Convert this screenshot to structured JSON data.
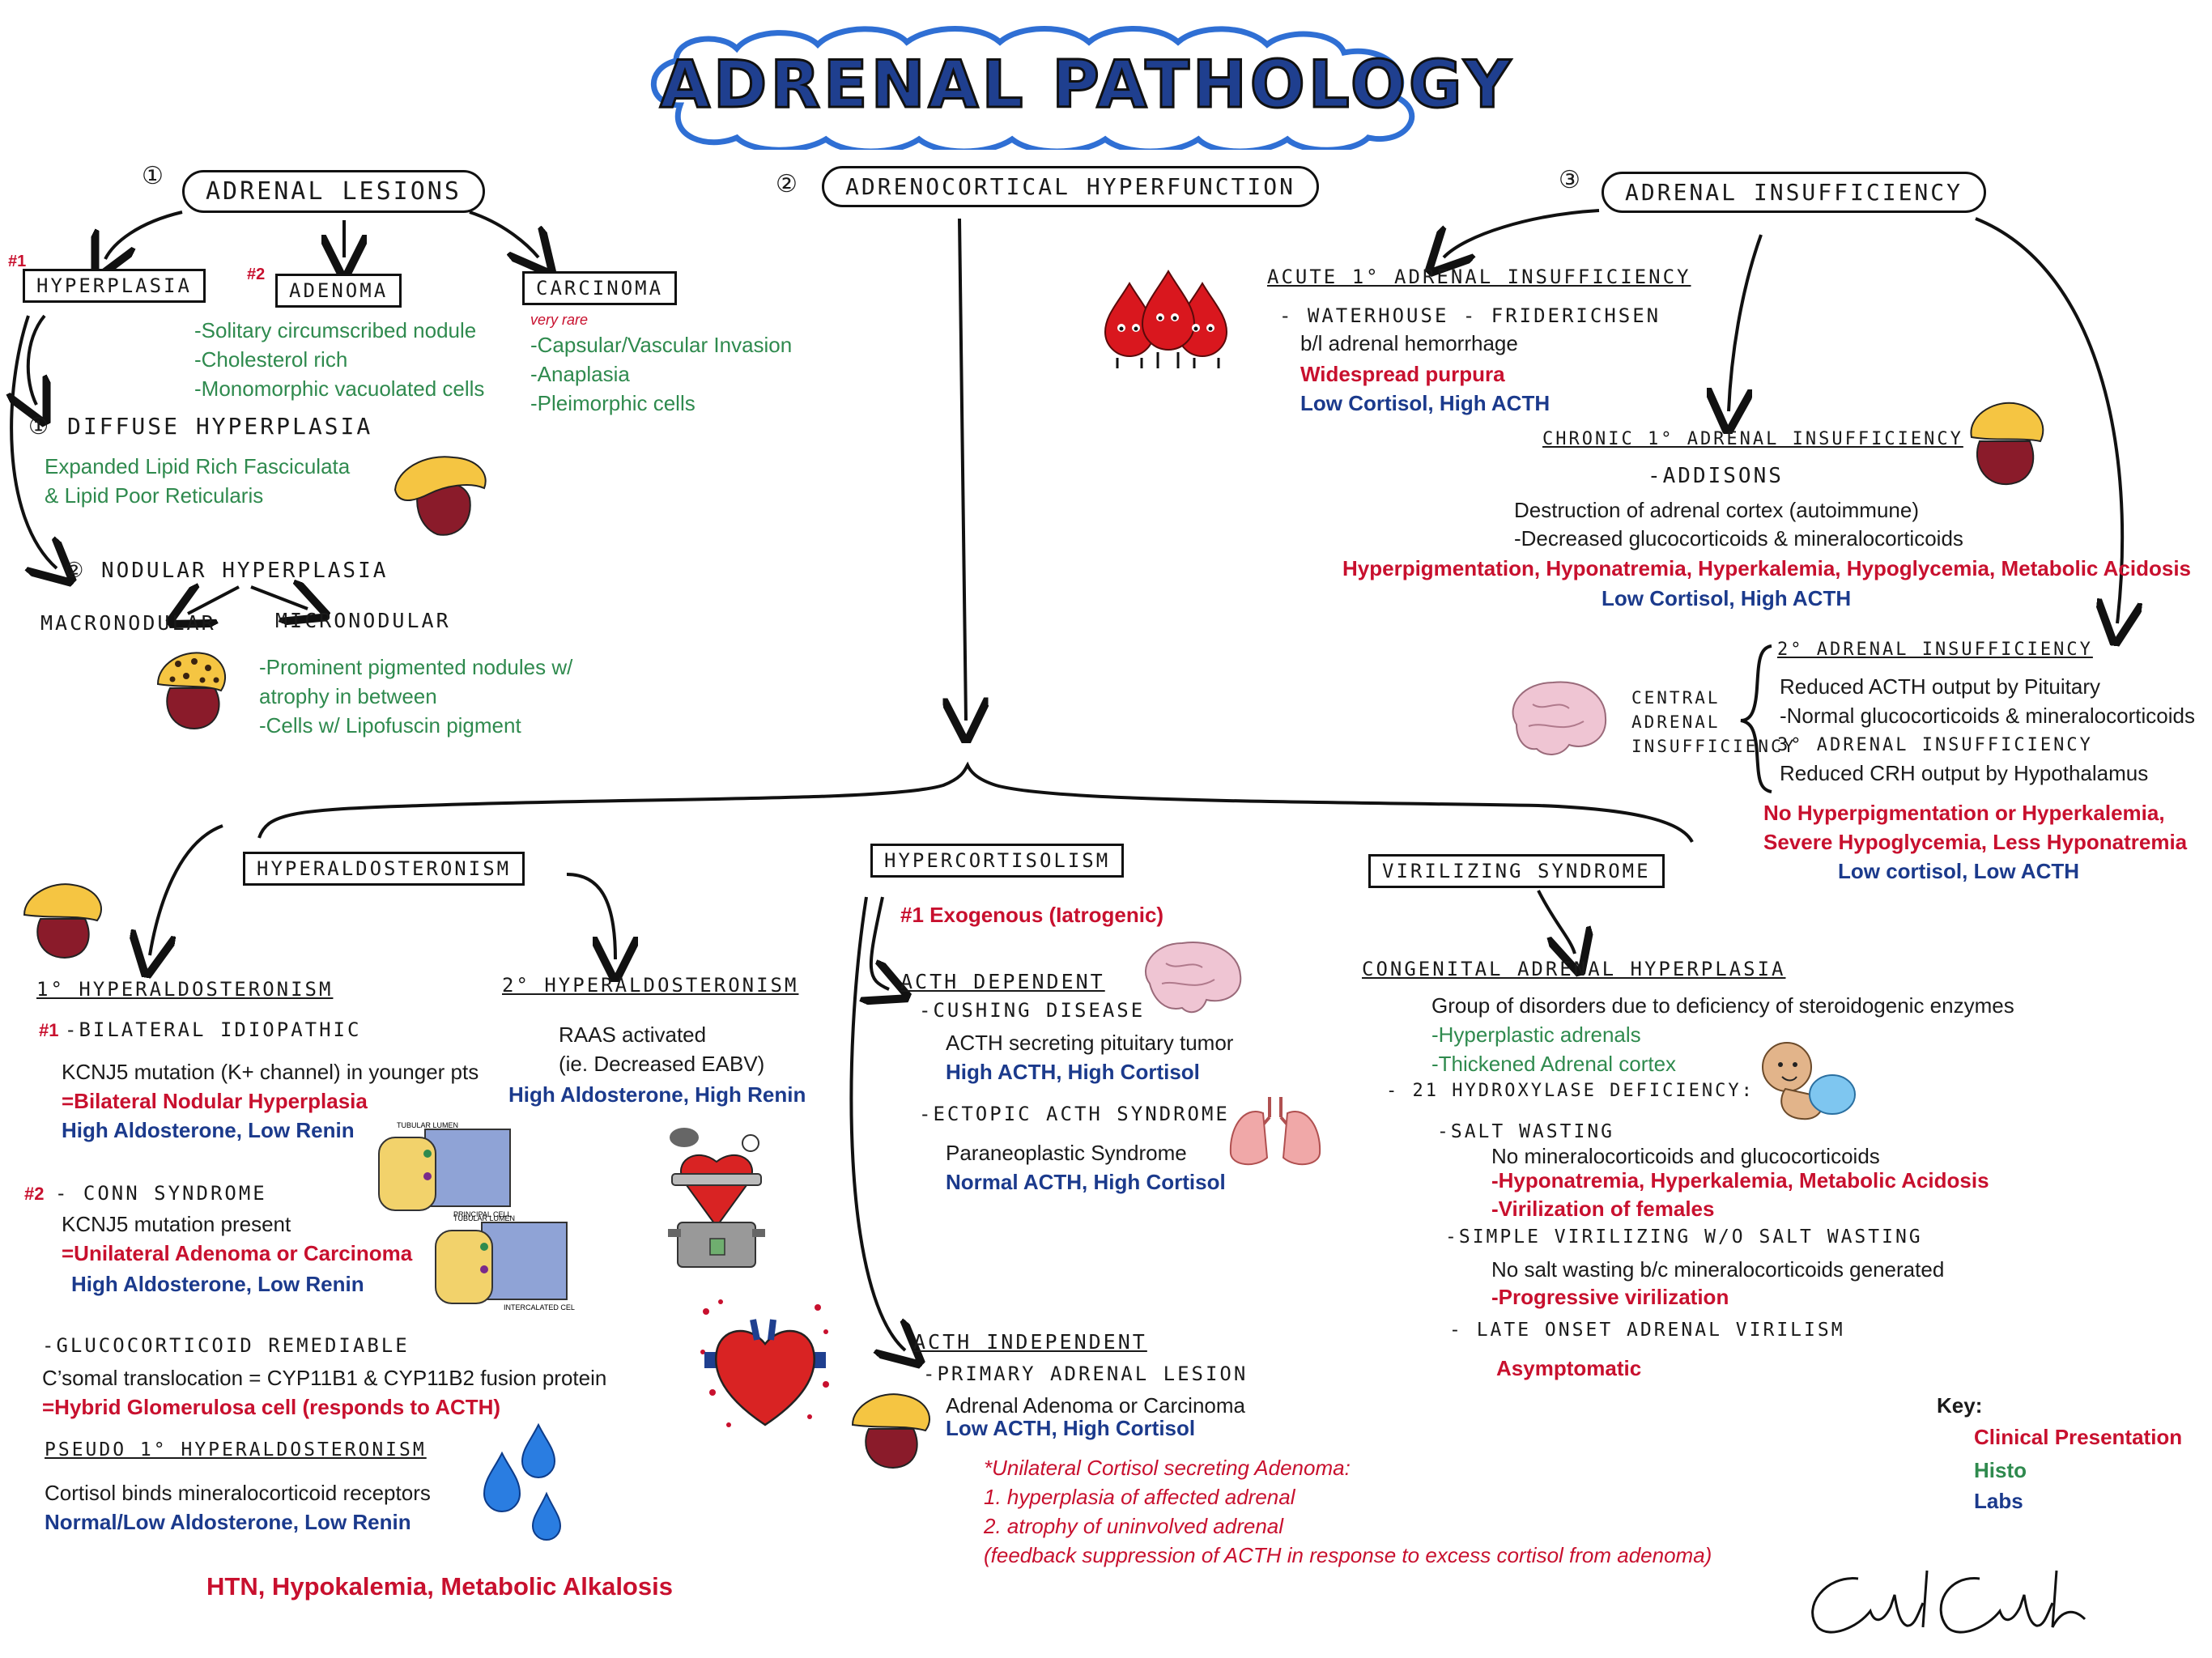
{
  "title": "ADRENAL PATHOLOGY",
  "colors": {
    "red": "#c8102e",
    "green": "#2f8a4e",
    "blue": "#1b3a8c",
    "title_fill": "#1f3f8f",
    "cloud_border": "#2f6fd4"
  },
  "s1": {
    "num": "①",
    "head": "ADRENAL LESIONS",
    "hyperplasia": {
      "tag": "#1",
      "label": "HYPERPLASIA",
      "diffuse": {
        "label": "① DIFFUSE HYPERPLASIA",
        "l1": "Expanded Lipid Rich Fasciculata",
        "l2": "& Lipid Poor Reticularis"
      },
      "nodular": {
        "label": "② NODULAR HYPERPLASIA",
        "macro": "MACRONODULAR",
        "micro": "MICRONODULAR",
        "l1": "-Prominent pigmented nodules w/",
        "l2": "atrophy in between",
        "l3": "-Cells w/ Lipofuscin pigment"
      }
    },
    "adenoma": {
      "tag": "#2",
      "label": "ADENOMA",
      "l1": "-Solitary circumscribed nodule",
      "l2": "-Cholesterol rich",
      "l3": "-Monomorphic vacuolated cells"
    },
    "carcinoma": {
      "label": "CARCINOMA",
      "note": "very rare",
      "l1": "-Capsular/Vascular Invasion",
      "l2": "-Anaplasia",
      "l3": "-Pleimorphic cells"
    }
  },
  "s2": {
    "num": "②",
    "head": "ADRENOCORTICAL HYPERFUNCTION",
    "hyperaldo": {
      "head": "HYPERALDOSTERONISM",
      "primary": {
        "label": "1° HYPERALDOSTERONISM",
        "bil_tag": "#1",
        "bil": "-BILATERAL IDIOPATHIC",
        "bil_l1": "KCNJ5 mutation (K+ channel) in younger pts",
        "bil_l2": "=Bilateral Nodular Hyperplasia",
        "bil_l3": "High Aldosterone, Low Renin",
        "conn_tag": "#2",
        "conn": "- CONN SYNDROME",
        "conn_l1": "KCNJ5 mutation present",
        "conn_l2": "=Unilateral Adenoma or Carcinoma",
        "conn_l3": "High Aldosterone, Low Renin",
        "cell1": "PRINCIPAL CELL",
        "cell2": "INTERCALATED CELL",
        "lumen": "TUBULAR LUMEN"
      },
      "gluco": {
        "label": "-GLUCOCORTICOID REMEDIABLE",
        "l1": "C’somal translocation = CYP11B1 & CYP11B2 fusion protein",
        "l2": "=Hybrid Glomerulosa cell (responds to ACTH)"
      },
      "pseudo": {
        "label": "PSEUDO 1° HYPERALDOSTERONISM",
        "l1": "Cortisol binds mineralocorticoid receptors",
        "l2": "Normal/Low Aldosterone, Low Renin"
      },
      "secondary": {
        "label": "2° HYPERALDOSTERONISM",
        "l1": "RAAS activated",
        "l2": "(ie. Decreased EABV)",
        "l3": "High Aldosterone, High Renin"
      },
      "clinical": "HTN, Hypokalemia, Metabolic Alkalosis"
    },
    "hypercort": {
      "head": "HYPERCORTISOLISM",
      "exo": "#1 Exogenous (Iatrogenic)",
      "dep": "ACTH DEPENDENT",
      "cushing": "-CUSHING DISEASE",
      "c_l1": "ACTH secreting pituitary tumor",
      "c_l2": "High ACTH, High Cortisol",
      "ectopic": "-ECTOPIC ACTH SYNDROME",
      "e_l1": "Paraneoplastic Syndrome",
      "e_l2": "Normal ACTH, High Cortisol",
      "indep": "ACTH INDEPENDENT",
      "pal": "-PRIMARY ADRENAL LESION",
      "p_l1": "Adrenal Adenoma or Carcinoma",
      "p_l2": "Low ACTH, High Cortisol",
      "n1": "*Unilateral Cortisol secreting Adenoma:",
      "n2": "1. hyperplasia of affected adrenal",
      "n3": "2. atrophy of uninvolved adrenal",
      "n4": "(feedback suppression of ACTH in response to excess cortisol from adenoma)"
    },
    "viril": {
      "head": "VIRILIZING SYNDROME",
      "cah": "CONGENITAL ADRENAL HYPERPLASIA",
      "l1": "Group of disorders due to deficiency of steroidogenic enzymes",
      "l2": "-Hyperplastic adrenals",
      "l3": "-Thickened Adrenal cortex",
      "hydrox": "- 21 HYDROXYLASE DEFICIENCY:",
      "salt": "-SALT WASTING",
      "s_l1": "No mineralocorticoids and glucocorticoids",
      "s_l2": "-Hyponatremia, Hyperkalemia, Metabolic Acidosis",
      "s_l3": "-Virilization of females",
      "simple": "-SIMPLE VIRILIZING W/O SALT WASTING",
      "sv_l1": "No salt wasting b/c mineralocorticoids generated",
      "sv_l2": "-Progressive virilization",
      "late": "- LATE ONSET ADRENAL VIRILISM",
      "late_l1": "Asymptomatic"
    }
  },
  "s3": {
    "num": "③",
    "head": "ADRENAL INSUFFICIENCY",
    "acute": {
      "label": "ACUTE 1° ADRENAL INSUFFICIENCY",
      "wf": "- WATERHOUSE - FRIDERICHSEN",
      "l1": "b/l adrenal hemorrhage",
      "l2": "Widespread purpura",
      "l3": "Low Cortisol, High ACTH"
    },
    "chronic": {
      "label": "CHRONIC 1° ADRENAL INSUFFICIENCY",
      "addison": "-ADDISONS",
      "l1": "Destruction of adrenal cortex (autoimmune)",
      "l2": "-Decreased glucocorticoids & mineralocorticoids",
      "l3": "Hyperpigmentation, Hyponatremia, Hyperkalemia, Hypoglycemia, Metabolic Acidosis",
      "l4": "Low Cortisol, High ACTH"
    },
    "central": {
      "c1": "CENTRAL",
      "c2": "ADRENAL",
      "c3": "INSUFFICIENCY",
      "sec": "2° ADRENAL INSUFFICIENCY",
      "sec_l1": "Reduced ACTH output by Pituitary",
      "sec_l2": "-Normal glucocorticoids & mineralocorticoids",
      "ter": "3° ADRENAL INSUFFICIENCY",
      "ter_l1": "Reduced CRH output by Hypothalamus",
      "r1": "No Hyperpigmentation or Hyperkalemia,",
      "r2": "Severe Hypoglycemia, Less Hyponatremia",
      "r3": "Low cortisol, Low ACTH"
    }
  },
  "key": {
    "label": "Key:",
    "clinical": "Clinical Presentation",
    "histo": "Histo",
    "labs": "Labs"
  }
}
